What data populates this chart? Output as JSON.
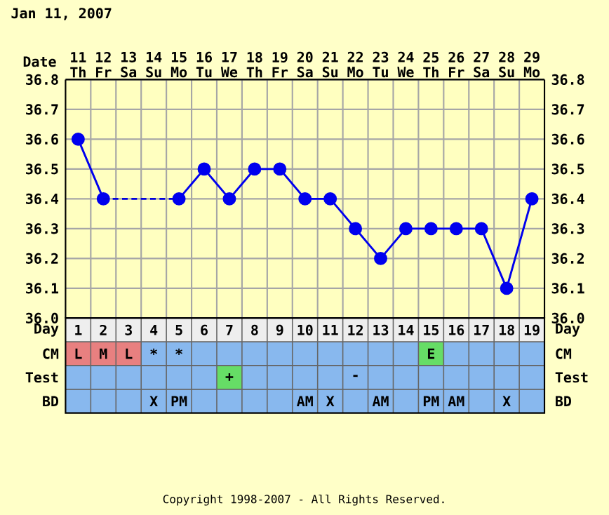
{
  "chart_data": [
    {
      "type": "line",
      "title": "Jan 11, 2007",
      "xlabel": "Date",
      "categories": [
        "11 Th",
        "12 Fr",
        "13 Sa",
        "14 Su",
        "15 Mo",
        "16 Tu",
        "17 We",
        "18 Th",
        "19 Fr",
        "20 Sa",
        "21 Su",
        "22 Mo",
        "23 Tu",
        "24 We",
        "25 Th",
        "26 Fr",
        "27 Sa",
        "28 Su",
        "29 Mo"
      ],
      "series": [
        {
          "color": "#0000ee",
          "marker": "circle",
          "line_style": "solid",
          "values": [
            36.6,
            36.4,
            null,
            null,
            36.4,
            36.5,
            36.4,
            36.5,
            36.5,
            36.4,
            36.4,
            36.3,
            36.2,
            36.3,
            36.3,
            36.3,
            36.3,
            36.1,
            36.4
          ]
        },
        {
          "color": "#0000dd",
          "marker": "none",
          "line_style": "dashed",
          "values": [
            null,
            36.4,
            null,
            null,
            36.4,
            null,
            null,
            null,
            null,
            null,
            null,
            null,
            null,
            null,
            null,
            null,
            null,
            null,
            null
          ]
        }
      ],
      "ylim": [
        36.0,
        36.8
      ],
      "yticks": [
        {
          "value": 36.0,
          "label": "36.0"
        },
        {
          "value": 36.1,
          "label": "36.1"
        },
        {
          "value": 36.2,
          "label": "36.2"
        },
        {
          "value": 36.3,
          "label": "36.3"
        },
        {
          "value": 36.4,
          "label": "36.4"
        },
        {
          "value": 36.5,
          "label": "36.5"
        },
        {
          "value": 36.6,
          "label": "36.6"
        },
        {
          "value": 36.7,
          "label": "36.7"
        },
        {
          "value": 36.8,
          "label": "36.8"
        }
      ],
      "y2lim": [
        36.0,
        36.8
      ],
      "y2ticks": [
        {
          "value": 36.0,
          "label": "36.0"
        },
        {
          "value": 36.1,
          "label": "36.1"
        },
        {
          "value": 36.2,
          "label": "36.2"
        },
        {
          "value": 36.3,
          "label": "36.3"
        },
        {
          "value": 36.4,
          "label": "36.4"
        },
        {
          "value": 36.5,
          "label": "36.5"
        },
        {
          "value": 36.6,
          "label": "36.6"
        },
        {
          "value": 36.7,
          "label": "36.7"
        },
        {
          "value": 36.8,
          "label": "36.8"
        }
      ],
      "grid": true
    },
    {
      "type": "heatmap",
      "categories": [
        null,
        null,
        null,
        null,
        null,
        null,
        null,
        null,
        null,
        null,
        null,
        null,
        null,
        null,
        null,
        null,
        null,
        null,
        null
      ],
      "y_categories": [
        "Day",
        "CM",
        "Test",
        "BD"
      ],
      "y2_categories": [
        "Day",
        "CM",
        "Test",
        "BD"
      ],
      "cells": [
        [
          null,
          null,
          null,
          null,
          null,
          null,
          null,
          null,
          null,
          null,
          null,
          null,
          null,
          null,
          null,
          null,
          null,
          null,
          null
        ],
        [
          null,
          null,
          null,
          null,
          null,
          null,
          null,
          null,
          null,
          null,
          null,
          null,
          null,
          null,
          null,
          null,
          null,
          null,
          null
        ],
        [
          null,
          null,
          null,
          null,
          null,
          null,
          null,
          null,
          null,
          null,
          null,
          null,
          null,
          null,
          null,
          null,
          null,
          null,
          null
        ],
        [
          null,
          null,
          null,
          null,
          null,
          null,
          null,
          null,
          null,
          null,
          null,
          null,
          null,
          null,
          null,
          null,
          null,
          null,
          null
        ]
      ],
      "cell_labels": [
        [
          "1",
          "2",
          "3",
          "4",
          "5",
          "6",
          "7",
          "8",
          "9",
          "10",
          "11",
          "12",
          "13",
          "14",
          "15",
          "16",
          "17",
          "18",
          "19"
        ],
        [
          "L",
          "M",
          "L",
          "*",
          "*",
          null,
          null,
          null,
          null,
          null,
          null,
          null,
          null,
          null,
          "E",
          null,
          null,
          null,
          null
        ],
        [
          null,
          null,
          null,
          null,
          null,
          null,
          "+",
          null,
          null,
          null,
          null,
          "-",
          null,
          null,
          null,
          null,
          null,
          null,
          null
        ],
        [
          null,
          null,
          null,
          "X",
          "PM",
          null,
          null,
          null,
          null,
          "AM",
          "X",
          null,
          "AM",
          null,
          "PM",
          "AM",
          null,
          "X",
          null
        ]
      ],
      "color": "#88b8ee",
      "colors": [
        [
          "#eeeeee",
          "#eeeeee",
          "#eeeeee",
          "#eeeeee",
          "#eeeeee",
          "#eeeeee",
          "#eeeeee",
          "#eeeeee",
          "#eeeeee",
          "#eeeeee",
          "#eeeeee",
          "#eeeeee",
          "#eeeeee",
          "#eeeeee",
          "#eeeeee",
          "#eeeeee",
          "#eeeeee",
          "#eeeeee",
          "#eeeeee"
        ],
        [
          "#e88080",
          "#e88080",
          "#e88080",
          null,
          null,
          null,
          null,
          null,
          null,
          null,
          null,
          null,
          null,
          null,
          "#66dd66",
          null,
          null,
          null,
          null
        ],
        [
          null,
          null,
          null,
          null,
          null,
          null,
          "#66dd66",
          null,
          null,
          null,
          null,
          null,
          null,
          null,
          null,
          null,
          null,
          null,
          null
        ],
        [
          null,
          null,
          null,
          null,
          null,
          null,
          null,
          null,
          null,
          null,
          null,
          null,
          null,
          null,
          null,
          null,
          null,
          null,
          null
        ]
      ],
      "annotations": [
        "Copyright 1998-2007 - All Rights Reserved."
      ]
    }
  ]
}
